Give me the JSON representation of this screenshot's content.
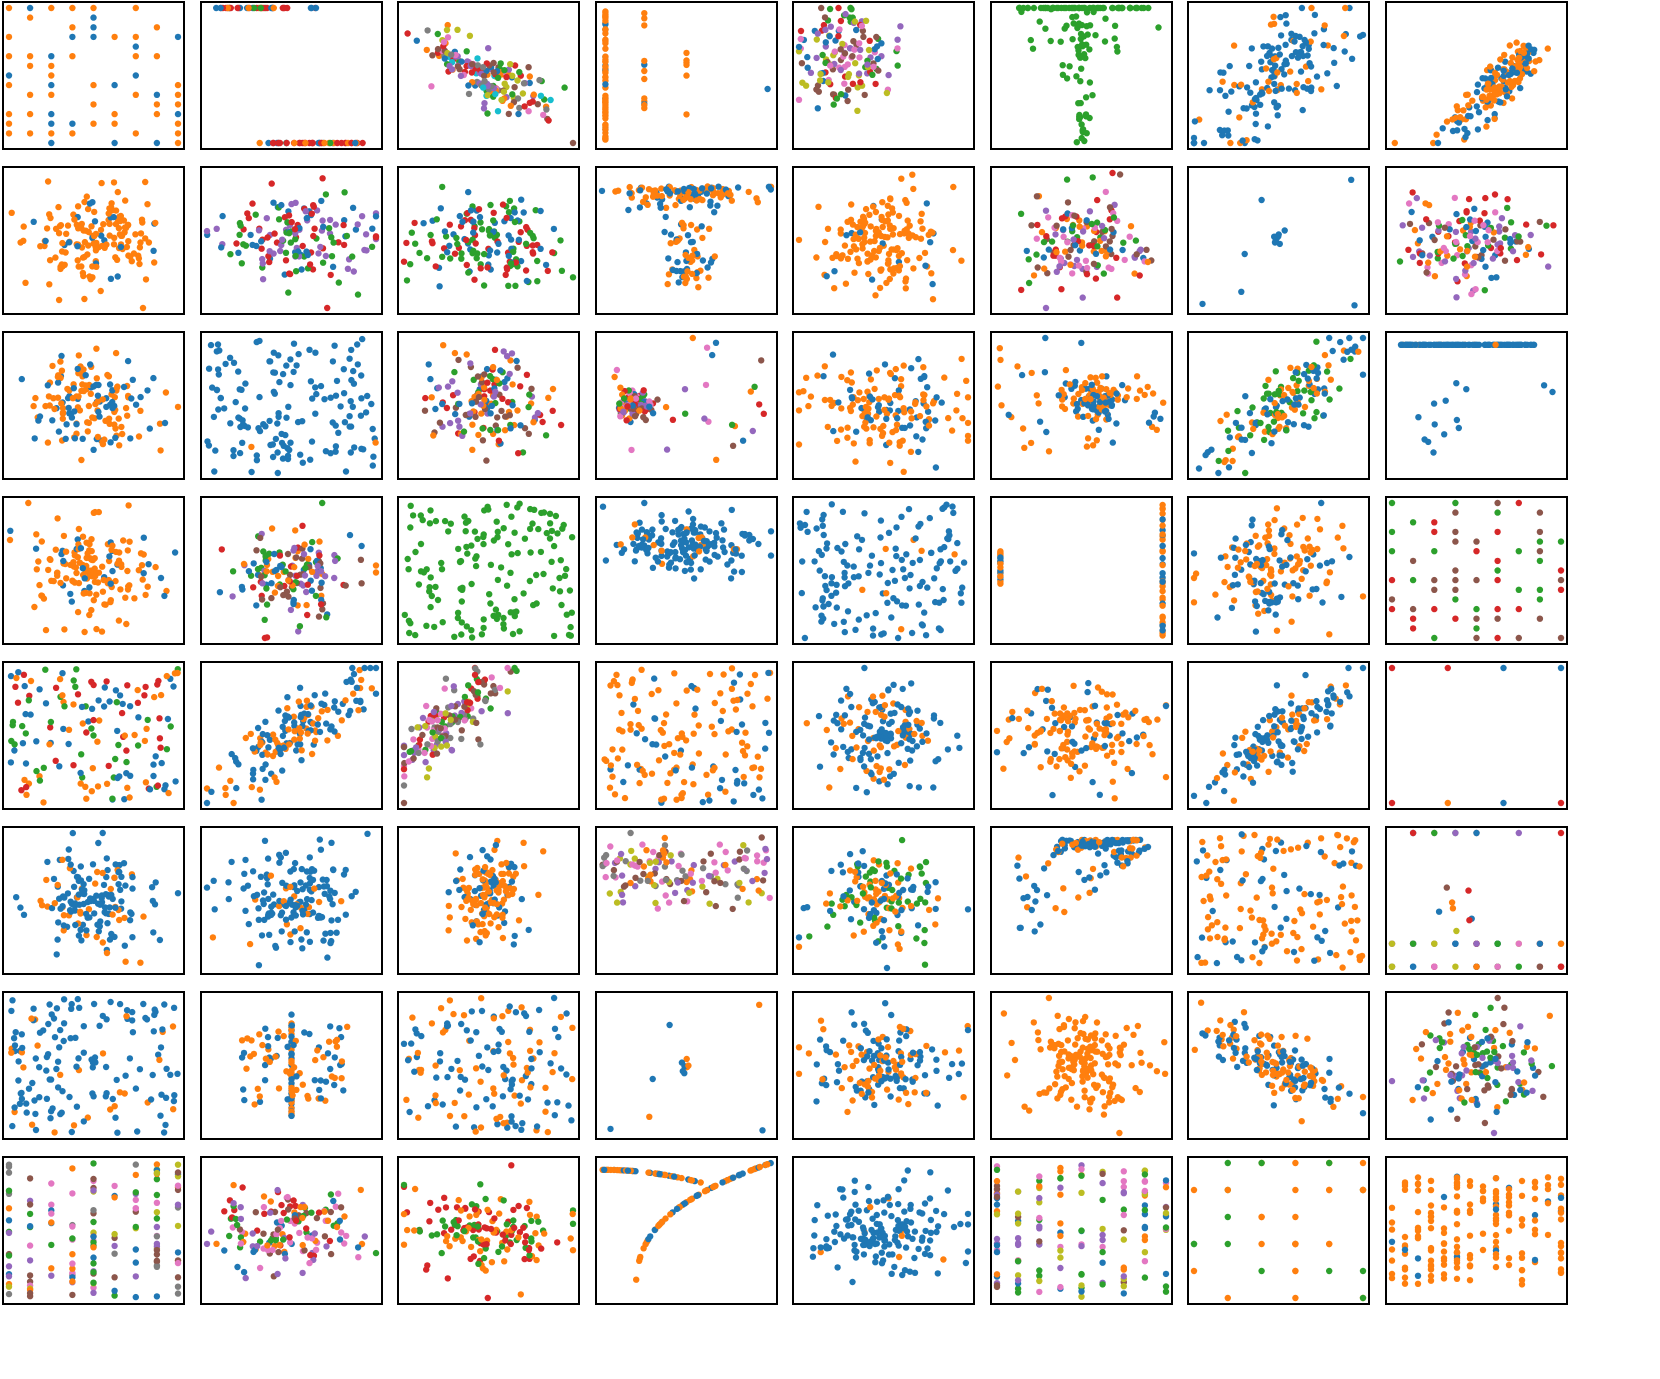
{
  "palette": {
    "blue": "#1f77b4",
    "orange": "#ff7f0e",
    "green": "#2ca02c",
    "red": "#d62728",
    "purple": "#9467bd",
    "brown": "#8c564b",
    "pink": "#e377c2",
    "gray": "#7f7f7f",
    "olive": "#bcbd22",
    "cyan": "#17becf"
  },
  "grid": {
    "rows": 8,
    "cols": 8,
    "ticks": "none",
    "axis_labels": "none",
    "legend": "none"
  },
  "chart_data": [
    {
      "type": "scatter",
      "pattern": "lattice",
      "series": [
        "blue",
        "orange"
      ],
      "mix": [
        0.25,
        0.75
      ]
    },
    {
      "type": "scatter",
      "pattern": "two-rows",
      "series": [
        "blue",
        "green",
        "red",
        "orange"
      ],
      "mix": [
        0.2,
        0.1,
        0.6,
        0.1
      ]
    },
    {
      "type": "scatter",
      "pattern": "neg-corr",
      "series": [
        "blue",
        "orange",
        "green",
        "red",
        "purple",
        "brown",
        "pink",
        "gray",
        "olive",
        "cyan"
      ]
    },
    {
      "type": "scatter",
      "pattern": "vertical-lines",
      "series": [
        "blue",
        "orange"
      ],
      "mix": [
        0.15,
        0.85
      ]
    },
    {
      "type": "scatter",
      "pattern": "cluster-topleft",
      "series": [
        "red",
        "purple",
        "green",
        "brown",
        "olive",
        "pink",
        "blue"
      ]
    },
    {
      "type": "scatter",
      "pattern": "spike-bottom",
      "series": [
        "green"
      ]
    },
    {
      "type": "scatter",
      "pattern": "pos-corr-wide",
      "series": [
        "blue",
        "orange"
      ],
      "mix": [
        0.75,
        0.25
      ]
    },
    {
      "type": "scatter",
      "pattern": "pos-corr-topright",
      "series": [
        "blue",
        "orange"
      ],
      "mix": [
        0.4,
        0.6
      ]
    },
    {
      "type": "scatter",
      "pattern": "blob",
      "series": [
        "orange",
        "blue"
      ],
      "mix": [
        0.85,
        0.15
      ]
    },
    {
      "type": "scatter",
      "pattern": "blob-wide",
      "series": [
        "purple",
        "blue",
        "green",
        "red"
      ]
    },
    {
      "type": "scatter",
      "pattern": "blob-wide",
      "series": [
        "red",
        "green",
        "blue"
      ]
    },
    {
      "type": "scatter",
      "pattern": "top-band-plus-stem",
      "series": [
        "orange",
        "blue"
      ],
      "mix": [
        0.6,
        0.4
      ]
    },
    {
      "type": "scatter",
      "pattern": "blob",
      "series": [
        "orange",
        "blue"
      ],
      "mix": [
        0.9,
        0.1
      ]
    },
    {
      "type": "scatter",
      "pattern": "blob",
      "series": [
        "pink",
        "purple",
        "red",
        "orange",
        "blue",
        "green",
        "brown"
      ]
    },
    {
      "type": "scatter",
      "pattern": "sparse-cluster",
      "series": [
        "blue"
      ]
    },
    {
      "type": "scatter",
      "pattern": "blob-wide",
      "series": [
        "blue",
        "red",
        "purple",
        "green",
        "pink",
        "brown",
        "orange"
      ]
    },
    {
      "type": "scatter",
      "pattern": "blob",
      "series": [
        "orange",
        "blue"
      ],
      "mix": [
        0.55,
        0.45
      ]
    },
    {
      "type": "scatter",
      "pattern": "uniform",
      "series": [
        "blue",
        "orange"
      ],
      "mix": [
        0.97,
        0.03
      ]
    },
    {
      "type": "scatter",
      "pattern": "blob",
      "series": [
        "purple",
        "red",
        "blue",
        "orange",
        "green",
        "brown"
      ]
    },
    {
      "type": "scatter",
      "pattern": "left-cluster-spread",
      "series": [
        "purple",
        "green",
        "orange",
        "blue",
        "red",
        "brown",
        "pink"
      ]
    },
    {
      "type": "scatter",
      "pattern": "blob-wide",
      "series": [
        "orange",
        "blue"
      ],
      "mix": [
        0.7,
        0.3
      ]
    },
    {
      "type": "scatter",
      "pattern": "cluster-right",
      "series": [
        "orange",
        "blue"
      ],
      "mix": [
        0.6,
        0.4
      ]
    },
    {
      "type": "scatter",
      "pattern": "pos-corr",
      "series": [
        "green",
        "orange",
        "blue"
      ]
    },
    {
      "type": "scatter",
      "pattern": "top-row-drop",
      "series": [
        "blue",
        "orange"
      ],
      "mix": [
        0.92,
        0.08
      ]
    },
    {
      "type": "scatter",
      "pattern": "blob",
      "series": [
        "orange",
        "blue"
      ],
      "mix": [
        0.8,
        0.2
      ]
    },
    {
      "type": "scatter",
      "pattern": "blob",
      "series": [
        "purple",
        "orange",
        "blue",
        "brown",
        "green",
        "red"
      ]
    },
    {
      "type": "scatter",
      "pattern": "uniform",
      "series": [
        "green"
      ]
    },
    {
      "type": "scatter",
      "pattern": "horizontal-blob",
      "series": [
        "blue",
        "orange"
      ],
      "mix": [
        0.9,
        0.1
      ]
    },
    {
      "type": "scatter",
      "pattern": "uniform",
      "series": [
        "blue",
        "orange"
      ],
      "mix": [
        0.9,
        0.1
      ]
    },
    {
      "type": "scatter",
      "pattern": "two-columns",
      "series": [
        "orange",
        "blue"
      ],
      "mix": [
        0.7,
        0.3
      ]
    },
    {
      "type": "scatter",
      "pattern": "blob",
      "series": [
        "orange",
        "blue"
      ],
      "mix": [
        0.55,
        0.45
      ]
    },
    {
      "type": "scatter",
      "pattern": "lattice",
      "series": [
        "red",
        "brown",
        "green"
      ]
    },
    {
      "type": "scatter",
      "pattern": "uniform",
      "series": [
        "blue",
        "orange",
        "green",
        "red"
      ]
    },
    {
      "type": "scatter",
      "pattern": "pos-corr",
      "series": [
        "blue",
        "orange"
      ],
      "mix": [
        0.6,
        0.4
      ]
    },
    {
      "type": "scatter",
      "pattern": "pos-corr-topleft",
      "series": [
        "pink",
        "brown",
        "purple",
        "red",
        "olive",
        "green",
        "gray"
      ]
    },
    {
      "type": "scatter",
      "pattern": "uniform",
      "series": [
        "orange",
        "blue"
      ],
      "mix": [
        0.75,
        0.25
      ]
    },
    {
      "type": "scatter",
      "pattern": "blob",
      "series": [
        "blue",
        "orange"
      ],
      "mix": [
        0.7,
        0.3
      ]
    },
    {
      "type": "scatter",
      "pattern": "blob-wide",
      "series": [
        "orange",
        "blue"
      ],
      "mix": [
        0.7,
        0.3
      ]
    },
    {
      "type": "scatter",
      "pattern": "pos-corr",
      "series": [
        "blue",
        "orange"
      ],
      "mix": [
        0.65,
        0.35
      ]
    },
    {
      "type": "scatter",
      "pattern": "corners",
      "series": [
        "orange",
        "blue",
        "red"
      ]
    },
    {
      "type": "scatter",
      "pattern": "blob",
      "series": [
        "blue",
        "orange"
      ],
      "mix": [
        0.85,
        0.15
      ]
    },
    {
      "type": "scatter",
      "pattern": "blob",
      "series": [
        "blue",
        "orange"
      ],
      "mix": [
        0.9,
        0.1
      ]
    },
    {
      "type": "scatter",
      "pattern": "tight-blob",
      "series": [
        "orange",
        "blue"
      ],
      "mix": [
        0.7,
        0.3
      ]
    },
    {
      "type": "scatter",
      "pattern": "horizontal-band",
      "series": [
        "pink",
        "olive",
        "brown",
        "gray",
        "purple",
        "orange"
      ]
    },
    {
      "type": "scatter",
      "pattern": "blob",
      "series": [
        "green",
        "blue",
        "orange"
      ]
    },
    {
      "type": "scatter",
      "pattern": "fan-topright",
      "series": [
        "blue",
        "orange"
      ],
      "mix": [
        0.7,
        0.3
      ]
    },
    {
      "type": "scatter",
      "pattern": "uniform",
      "series": [
        "orange",
        "blue"
      ],
      "mix": [
        0.7,
        0.3
      ]
    },
    {
      "type": "scatter",
      "pattern": "bottom-row-sparse",
      "series": [
        "green",
        "orange",
        "red",
        "brown",
        "pink",
        "olive",
        "purple",
        "blue"
      ]
    },
    {
      "type": "scatter",
      "pattern": "uniform",
      "series": [
        "blue",
        "orange"
      ],
      "mix": [
        0.85,
        0.15
      ]
    },
    {
      "type": "scatter",
      "pattern": "vertical-line-center",
      "series": [
        "orange",
        "blue"
      ],
      "mix": [
        0.55,
        0.45
      ]
    },
    {
      "type": "scatter",
      "pattern": "uniform",
      "series": [
        "blue",
        "orange"
      ],
      "mix": [
        0.55,
        0.45
      ]
    },
    {
      "type": "scatter",
      "pattern": "sparse-cluster",
      "series": [
        "orange",
        "blue"
      ]
    },
    {
      "type": "scatter",
      "pattern": "blob-wide",
      "series": [
        "blue",
        "orange"
      ],
      "mix": [
        0.6,
        0.4
      ]
    },
    {
      "type": "scatter",
      "pattern": "blob",
      "series": [
        "orange"
      ]
    },
    {
      "type": "scatter",
      "pattern": "neg-corr",
      "series": [
        "orange",
        "blue"
      ],
      "mix": [
        0.5,
        0.5
      ]
    },
    {
      "type": "scatter",
      "pattern": "blob",
      "series": [
        "purple",
        "brown",
        "green",
        "blue",
        "orange"
      ]
    },
    {
      "type": "scatter",
      "pattern": "vertical-strips",
      "series": [
        "olive",
        "brown",
        "pink",
        "gray",
        "purple",
        "blue",
        "orange",
        "green"
      ]
    },
    {
      "type": "scatter",
      "pattern": "blob-wide",
      "series": [
        "orange",
        "red",
        "green",
        "purple",
        "brown",
        "blue",
        "pink"
      ]
    },
    {
      "type": "scatter",
      "pattern": "blob-wide",
      "series": [
        "red",
        "green",
        "orange"
      ]
    },
    {
      "type": "scatter",
      "pattern": "curve",
      "series": [
        "blue",
        "orange"
      ],
      "mix": [
        0.35,
        0.65
      ]
    },
    {
      "type": "scatter",
      "pattern": "blob-wide",
      "series": [
        "blue",
        "orange"
      ],
      "mix": [
        0.95,
        0.05
      ]
    },
    {
      "type": "scatter",
      "pattern": "vertical-strips",
      "series": [
        "orange",
        "purple",
        "brown",
        "blue",
        "green",
        "pink",
        "olive"
      ]
    },
    {
      "type": "scatter",
      "pattern": "column-lattice",
      "series": [
        "orange",
        "green"
      ],
      "mix": [
        0.6,
        0.4
      ]
    },
    {
      "type": "scatter",
      "pattern": "column-lattice-dense",
      "series": [
        "orange",
        "blue"
      ],
      "mix": [
        0.9,
        0.1
      ]
    }
  ]
}
